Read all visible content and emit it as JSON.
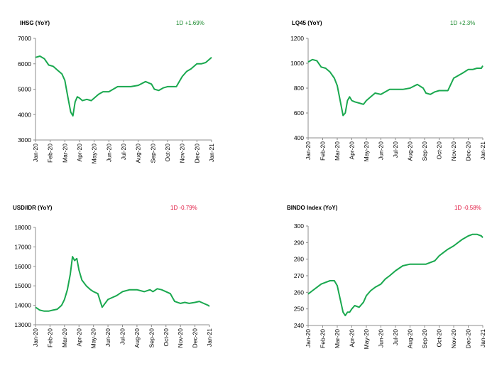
{
  "colors": {
    "line": "#1aa84f",
    "positive": "#1b8a2e",
    "negative": "#e0163f",
    "axis": "#8c8c8c"
  },
  "panels": [
    {
      "title": "IHSG (YoY)",
      "change": "1D +1.69%",
      "direction": "positive"
    },
    {
      "title": "LQ45 (YoY)",
      "change": "1D +2.3%",
      "direction": "positive"
    },
    {
      "title": "USD/IDR  (YoY)",
      "change": "1D -0.79%",
      "direction": "negative"
    },
    {
      "title": "BINDO Index (YoY)",
      "change": "1D -0.58%",
      "direction": "negative"
    }
  ],
  "chart_data": [
    {
      "type": "line",
      "title": "IHSG (YoY)",
      "ylim": [
        3000,
        7000
      ],
      "yticks": [
        "3000",
        "4000",
        "5000",
        "6000",
        "7000"
      ],
      "xtick_labels": [
        "Jan-20",
        "Feb-20",
        "Mar-20",
        "Apr-20",
        "May-20",
        "Jun-20",
        "Jul-20",
        "Aug-20",
        "Sep-20",
        "Oct-20",
        "Nov-20",
        "Dec-20",
        "Jan-21"
      ],
      "x": [
        0,
        0.3,
        0.6,
        0.9,
        1.2,
        1.5,
        1.8,
        2.0,
        2.2,
        2.4,
        2.55,
        2.7,
        2.85,
        3.0,
        3.2,
        3.5,
        3.8,
        4.0,
        4.3,
        4.6,
        5.0,
        5.3,
        5.6,
        6.0,
        6.5,
        7.0,
        7.5,
        7.9,
        8.1,
        8.4,
        8.7,
        9.0,
        9.3,
        9.6,
        10.0,
        10.3,
        10.6,
        11.0,
        11.3,
        11.6,
        11.9,
        12.0
      ],
      "series": [
        {
          "values": [
            6250,
            6300,
            6200,
            5950,
            5900,
            5750,
            5600,
            5350,
            4700,
            4100,
            3950,
            4500,
            4700,
            4650,
            4550,
            4600,
            4550,
            4650,
            4800,
            4900,
            4900,
            5000,
            5100,
            5100,
            5100,
            5150,
            5300,
            5200,
            5000,
            4950,
            5050,
            5100,
            5100,
            5100,
            5500,
            5700,
            5800,
            6000,
            6000,
            6050,
            6200,
            6250
          ]
        }
      ]
    },
    {
      "type": "line",
      "title": "LQ45 (YoY)",
      "ylim": [
        400,
        1200
      ],
      "yticks": [
        "400",
        "600",
        "800",
        "1000",
        "1200"
      ],
      "xtick_labels": [
        "Jan-20",
        "Feb-20",
        "Mar-20",
        "Apr-20",
        "May-20",
        "Jun-20",
        "Jul-20",
        "Aug-20",
        "Sep-20",
        "Oct-20",
        "Nov-20",
        "Dec-20",
        "Jan-21"
      ],
      "x": [
        0,
        0.3,
        0.6,
        0.9,
        1.2,
        1.5,
        1.8,
        2.0,
        2.2,
        2.4,
        2.55,
        2.7,
        2.85,
        3.0,
        3.2,
        3.5,
        3.8,
        4.0,
        4.3,
        4.6,
        5.0,
        5.3,
        5.6,
        6.0,
        6.5,
        7.0,
        7.5,
        7.9,
        8.1,
        8.4,
        8.7,
        9.0,
        9.3,
        9.6,
        10.0,
        10.3,
        10.6,
        11.0,
        11.3,
        11.6,
        11.9,
        12.0
      ],
      "series": [
        {
          "values": [
            1010,
            1030,
            1020,
            970,
            960,
            930,
            880,
            820,
            700,
            580,
            600,
            700,
            730,
            700,
            690,
            680,
            670,
            700,
            730,
            760,
            750,
            770,
            790,
            790,
            790,
            800,
            830,
            800,
            760,
            750,
            770,
            780,
            780,
            780,
            880,
            900,
            920,
            950,
            950,
            960,
            960,
            980
          ]
        }
      ]
    },
    {
      "type": "line",
      "title": "USD/IDR  (YoY)",
      "ylim": [
        13000,
        18000
      ],
      "yticks": [
        "13000",
        "14000",
        "15000",
        "16000",
        "17000",
        "18000"
      ],
      "xtick_labels": [
        "Jan-20",
        "Feb-20",
        "Mar-20",
        "Apr-20",
        "May-20",
        "Jun-20",
        "Jul-20",
        "Aug-20",
        "Sep-20",
        "Oct-20",
        "Nov-20",
        "Dec-20",
        "Jan-21"
      ],
      "x": [
        0,
        0.3,
        0.6,
        0.9,
        1.2,
        1.5,
        1.8,
        2.0,
        2.2,
        2.4,
        2.55,
        2.7,
        2.85,
        3.0,
        3.2,
        3.5,
        3.8,
        4.0,
        4.3,
        4.6,
        5.0,
        5.3,
        5.6,
        6.0,
        6.5,
        7.0,
        7.5,
        7.9,
        8.1,
        8.4,
        8.7,
        9.0,
        9.3,
        9.6,
        10.0,
        10.3,
        10.6,
        11.0,
        11.3,
        11.6,
        11.9,
        12.0
      ],
      "series": [
        {
          "values": [
            13900,
            13750,
            13700,
            13700,
            13750,
            13800,
            14000,
            14300,
            14800,
            15600,
            16500,
            16300,
            16400,
            15800,
            15300,
            15000,
            14800,
            14700,
            14600,
            13900,
            14300,
            14400,
            14500,
            14700,
            14800,
            14800,
            14700,
            14800,
            14700,
            14850,
            14800,
            14700,
            14600,
            14200,
            14100,
            14150,
            14100,
            14150,
            14200,
            14100,
            14000,
            13950
          ]
        }
      ]
    },
    {
      "type": "line",
      "title": "BINDO Index (YoY)",
      "ylim": [
        240,
        300
      ],
      "yticks": [
        "240",
        "250",
        "260",
        "270",
        "280",
        "290",
        "300"
      ],
      "xtick_labels": [
        "Jan-20",
        "Feb-20",
        "Mar-20",
        "Apr-20",
        "May-20",
        "Jun-20",
        "Jul-20",
        "Aug-20",
        "Sep-20",
        "Oct-20",
        "Nov-20",
        "Dec-20",
        "Jan-21"
      ],
      "x": [
        0,
        0.3,
        0.6,
        0.9,
        1.2,
        1.5,
        1.8,
        2.0,
        2.2,
        2.4,
        2.55,
        2.7,
        2.85,
        3.0,
        3.2,
        3.5,
        3.8,
        4.0,
        4.3,
        4.6,
        5.0,
        5.3,
        5.6,
        6.0,
        6.5,
        7.0,
        7.5,
        7.9,
        8.1,
        8.4,
        8.7,
        9.0,
        9.3,
        9.6,
        10.0,
        10.3,
        10.6,
        11.0,
        11.3,
        11.6,
        11.9,
        12.0
      ],
      "series": [
        {
          "values": [
            259,
            261,
            263,
            265,
            266,
            267,
            267,
            264,
            256,
            248,
            246,
            248,
            248,
            250,
            252,
            251,
            254,
            258,
            261,
            263,
            265,
            268,
            270,
            273,
            276,
            277,
            277,
            277,
            277,
            278,
            279,
            282,
            284,
            286,
            288,
            290,
            292,
            294,
            295,
            295,
            294,
            293
          ]
        }
      ]
    }
  ]
}
